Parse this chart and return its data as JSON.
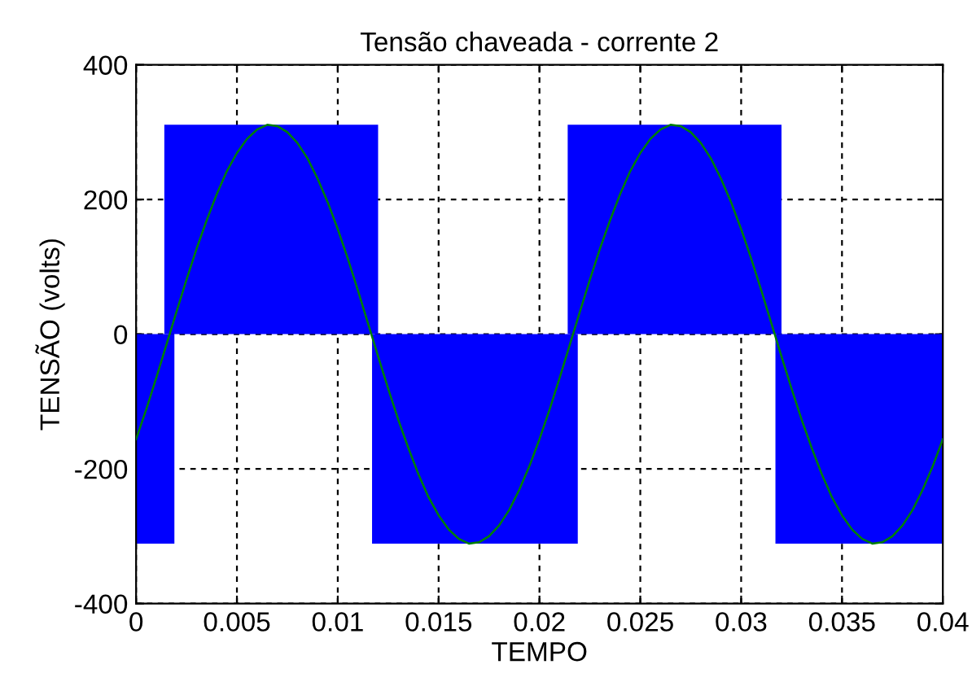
{
  "chart_data": {
    "type": "line",
    "title": "Tensão chaveada - corrente 2",
    "xlabel": "TEMPO",
    "ylabel": "TENSÃO (volts)",
    "xlim": [
      0,
      0.04
    ],
    "xticks": [
      0,
      0.005,
      0.01,
      0.015,
      0.02,
      0.025,
      0.03,
      0.035,
      0.04
    ],
    "ylim": [
      -400,
      400
    ],
    "yticks": [
      -400,
      -200,
      0,
      200,
      400
    ],
    "grid": true,
    "line_style": "solid",
    "series": [
      {
        "type": "area",
        "color": "#0000ff",
        "x": [
          0.0014,
          0.012
        ],
        "values": [
          311,
          311
        ]
      },
      {
        "type": "area",
        "color": "#0000ff",
        "x": [
          0.0214,
          0.032
        ],
        "values": [
          311,
          311
        ]
      },
      {
        "type": "area",
        "color": "#0000ff",
        "x": [
          0,
          0.0019
        ],
        "values": [
          -311,
          -311
        ]
      },
      {
        "type": "area",
        "color": "#0000ff",
        "x": [
          0.0117,
          0.0219
        ],
        "values": [
          -311,
          -311
        ]
      },
      {
        "type": "area",
        "color": "#0000ff",
        "x": [
          0.0317,
          0.04
        ],
        "values": [
          -311,
          -311
        ]
      },
      {
        "color": "#008000",
        "x": [
          0,
          0.0005,
          0.001,
          0.0015,
          0.002,
          0.0025,
          0.003,
          0.0035,
          0.004,
          0.0045,
          0.005,
          0.0055,
          0.006,
          0.0065,
          0.007,
          0.0075,
          0.008,
          0.0085,
          0.009,
          0.0095,
          0.01,
          0.0105,
          0.011,
          0.0115,
          0.012,
          0.0125,
          0.013,
          0.0135,
          0.014,
          0.0145,
          0.015,
          0.0155,
          0.016,
          0.0165,
          0.017,
          0.0175,
          0.018,
          0.0185,
          0.019,
          0.0195,
          0.02,
          0.0205,
          0.021,
          0.0215,
          0.022,
          0.0225,
          0.023,
          0.0235,
          0.024,
          0.0245,
          0.025,
          0.0255,
          0.026,
          0.0265,
          0.027,
          0.0275,
          0.028,
          0.0285,
          0.029,
          0.0295,
          0.03,
          0.0305,
          0.031,
          0.0315,
          0.032,
          0.0325,
          0.033,
          0.0335,
          0.034,
          0.0345,
          0.035,
          0.0355,
          0.036,
          0.0365,
          0.037,
          0.0375,
          0.038,
          0.0385,
          0.039,
          0.0395,
          0.04
        ],
        "values": [
          -156,
          -112,
          -65,
          -16,
          33,
          81,
          127,
          169,
          208,
          242,
          269,
          290,
          304,
          311,
          309,
          300,
          284,
          261,
          231,
          196,
          156,
          112,
          65,
          16,
          -33,
          -81,
          -127,
          -169,
          -208,
          -242,
          -269,
          -290,
          -304,
          -311,
          -309,
          -300,
          -284,
          -261,
          -231,
          -196,
          -156,
          -112,
          -65,
          -16,
          33,
          81,
          127,
          169,
          208,
          242,
          269,
          290,
          304,
          311,
          309,
          300,
          284,
          261,
          231,
          196,
          156,
          112,
          65,
          16,
          -33,
          -81,
          -127,
          -169,
          -208,
          -242,
          -269,
          -290,
          -304,
          -311,
          -309,
          -300,
          -284,
          -261,
          -231,
          -196,
          -156
        ]
      }
    ]
  }
}
